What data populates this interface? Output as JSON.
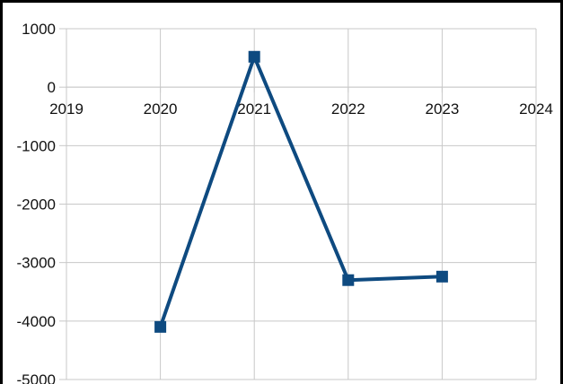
{
  "chart_data": {
    "type": "line",
    "x": [
      2020,
      2021,
      2022,
      2023
    ],
    "series": [
      {
        "values": [
          -4100,
          520,
          -3300,
          -3240
        ],
        "color": "#0e4a80",
        "marker": "square"
      }
    ],
    "xlim": [
      2019,
      2024
    ],
    "ylim": [
      -5000,
      1000
    ],
    "xticks": [
      "2019",
      "2020",
      "2021",
      "2022",
      "2023",
      "2024"
    ],
    "yticks": [
      "1000",
      "0",
      "-1000",
      "-2000",
      "-3000",
      "-4000",
      "-5000"
    ],
    "grid": true,
    "title": "",
    "xlabel": "",
    "ylabel": ""
  }
}
